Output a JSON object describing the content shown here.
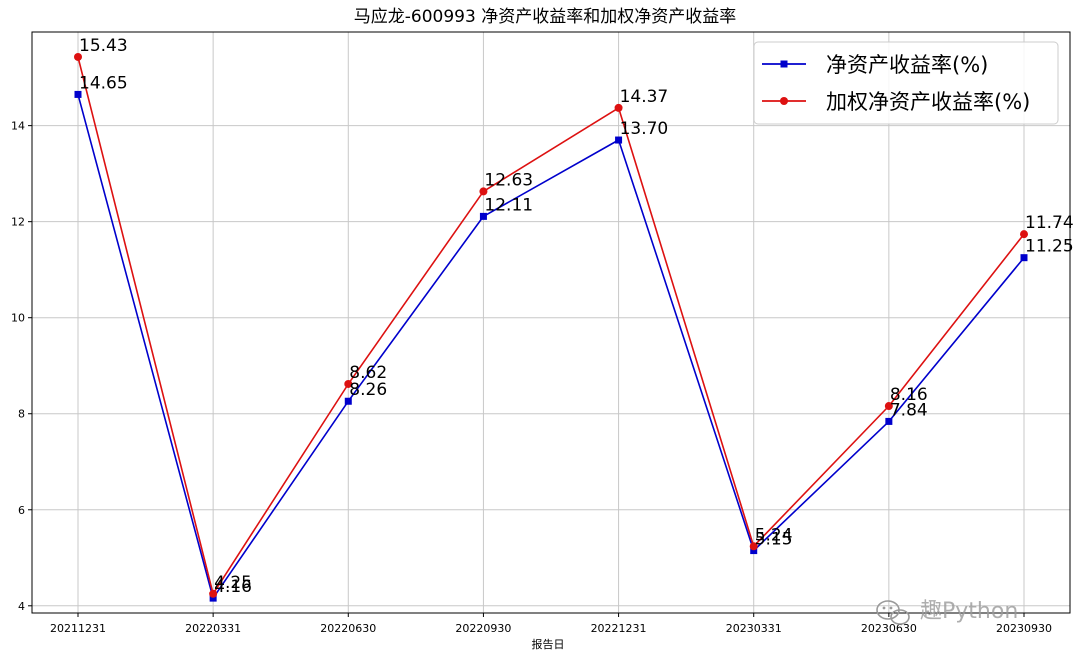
{
  "chart_data": {
    "type": "line",
    "title": "马应龙-600993 净资产收益率和加权净资产收益率",
    "xlabel": "报告日",
    "ylabel": "",
    "categories": [
      "20211231",
      "20220331",
      "20220630",
      "20220930",
      "20221231",
      "20230331",
      "20230630",
      "20230930"
    ],
    "ylim": [
      3.85,
      15.95
    ],
    "yticks": [
      4,
      6,
      8,
      10,
      12,
      14
    ],
    "grid": true,
    "legend_position": "top-right",
    "series": [
      {
        "name": "净资产收益率(%)",
        "color": "#0000cc",
        "marker": "square",
        "values": [
          14.65,
          4.16,
          8.26,
          12.11,
          13.7,
          5.15,
          7.84,
          11.25
        ],
        "labels": [
          "14.65",
          "4.16",
          "8.26",
          "12.11",
          "13.70",
          "5.15",
          "7.84",
          "11.25"
        ]
      },
      {
        "name": "加权净资产收益率(%)",
        "color": "#dd1111",
        "marker": "circle",
        "values": [
          15.43,
          4.25,
          8.62,
          12.63,
          14.37,
          5.24,
          8.16,
          11.74
        ],
        "labels": [
          "15.43",
          "4.25",
          "8.62",
          "12.63",
          "14.37",
          "5.24",
          "8.16",
          "11.74"
        ]
      }
    ]
  },
  "watermark": {
    "text": "趣Python",
    "icon": "wechat-icon"
  }
}
